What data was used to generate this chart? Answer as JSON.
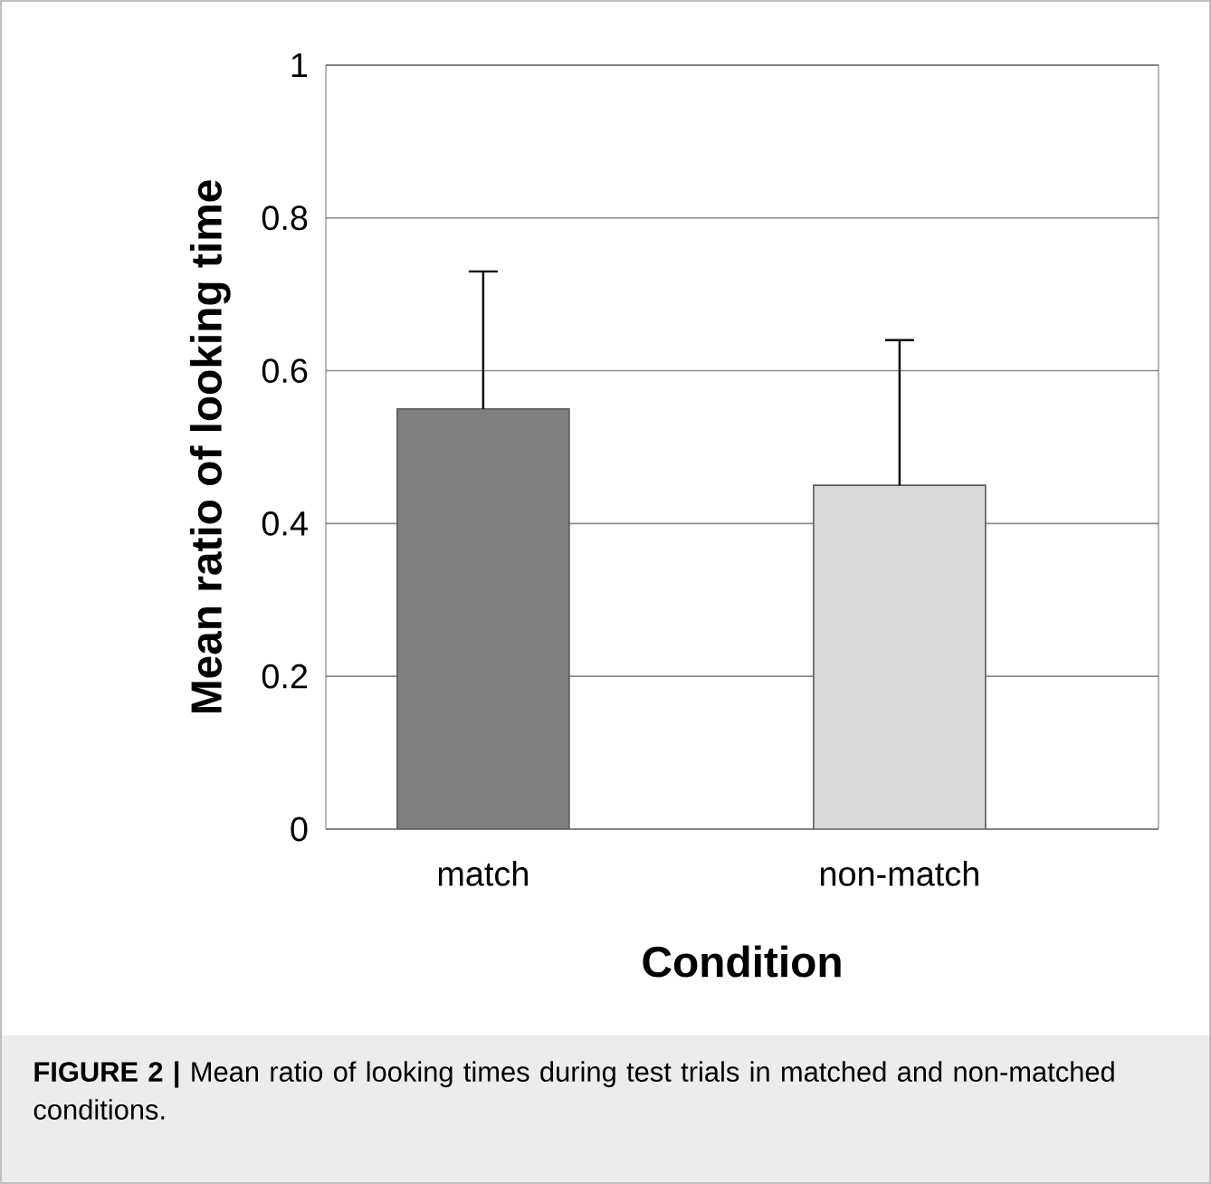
{
  "chart_data": {
    "type": "bar",
    "categories": [
      "match",
      "non-match"
    ],
    "values": [
      0.55,
      0.45
    ],
    "colors": [
      "#808080",
      "#d9d9d9"
    ],
    "errors": [
      [
        0.55,
        0.73
      ],
      [
        0.45,
        0.64
      ]
    ],
    "xlabel": "Condition",
    "ylabel": "Mean ratio of looking time",
    "ylim": [
      0,
      1
    ],
    "yticks": [
      0,
      0.2,
      0.4,
      0.6,
      0.8,
      1
    ],
    "grid": "y",
    "annotations": [
      "**FIGURE 2 |** Mean ratio of looking times during test trials in matched and non-matched conditions."
    ]
  }
}
